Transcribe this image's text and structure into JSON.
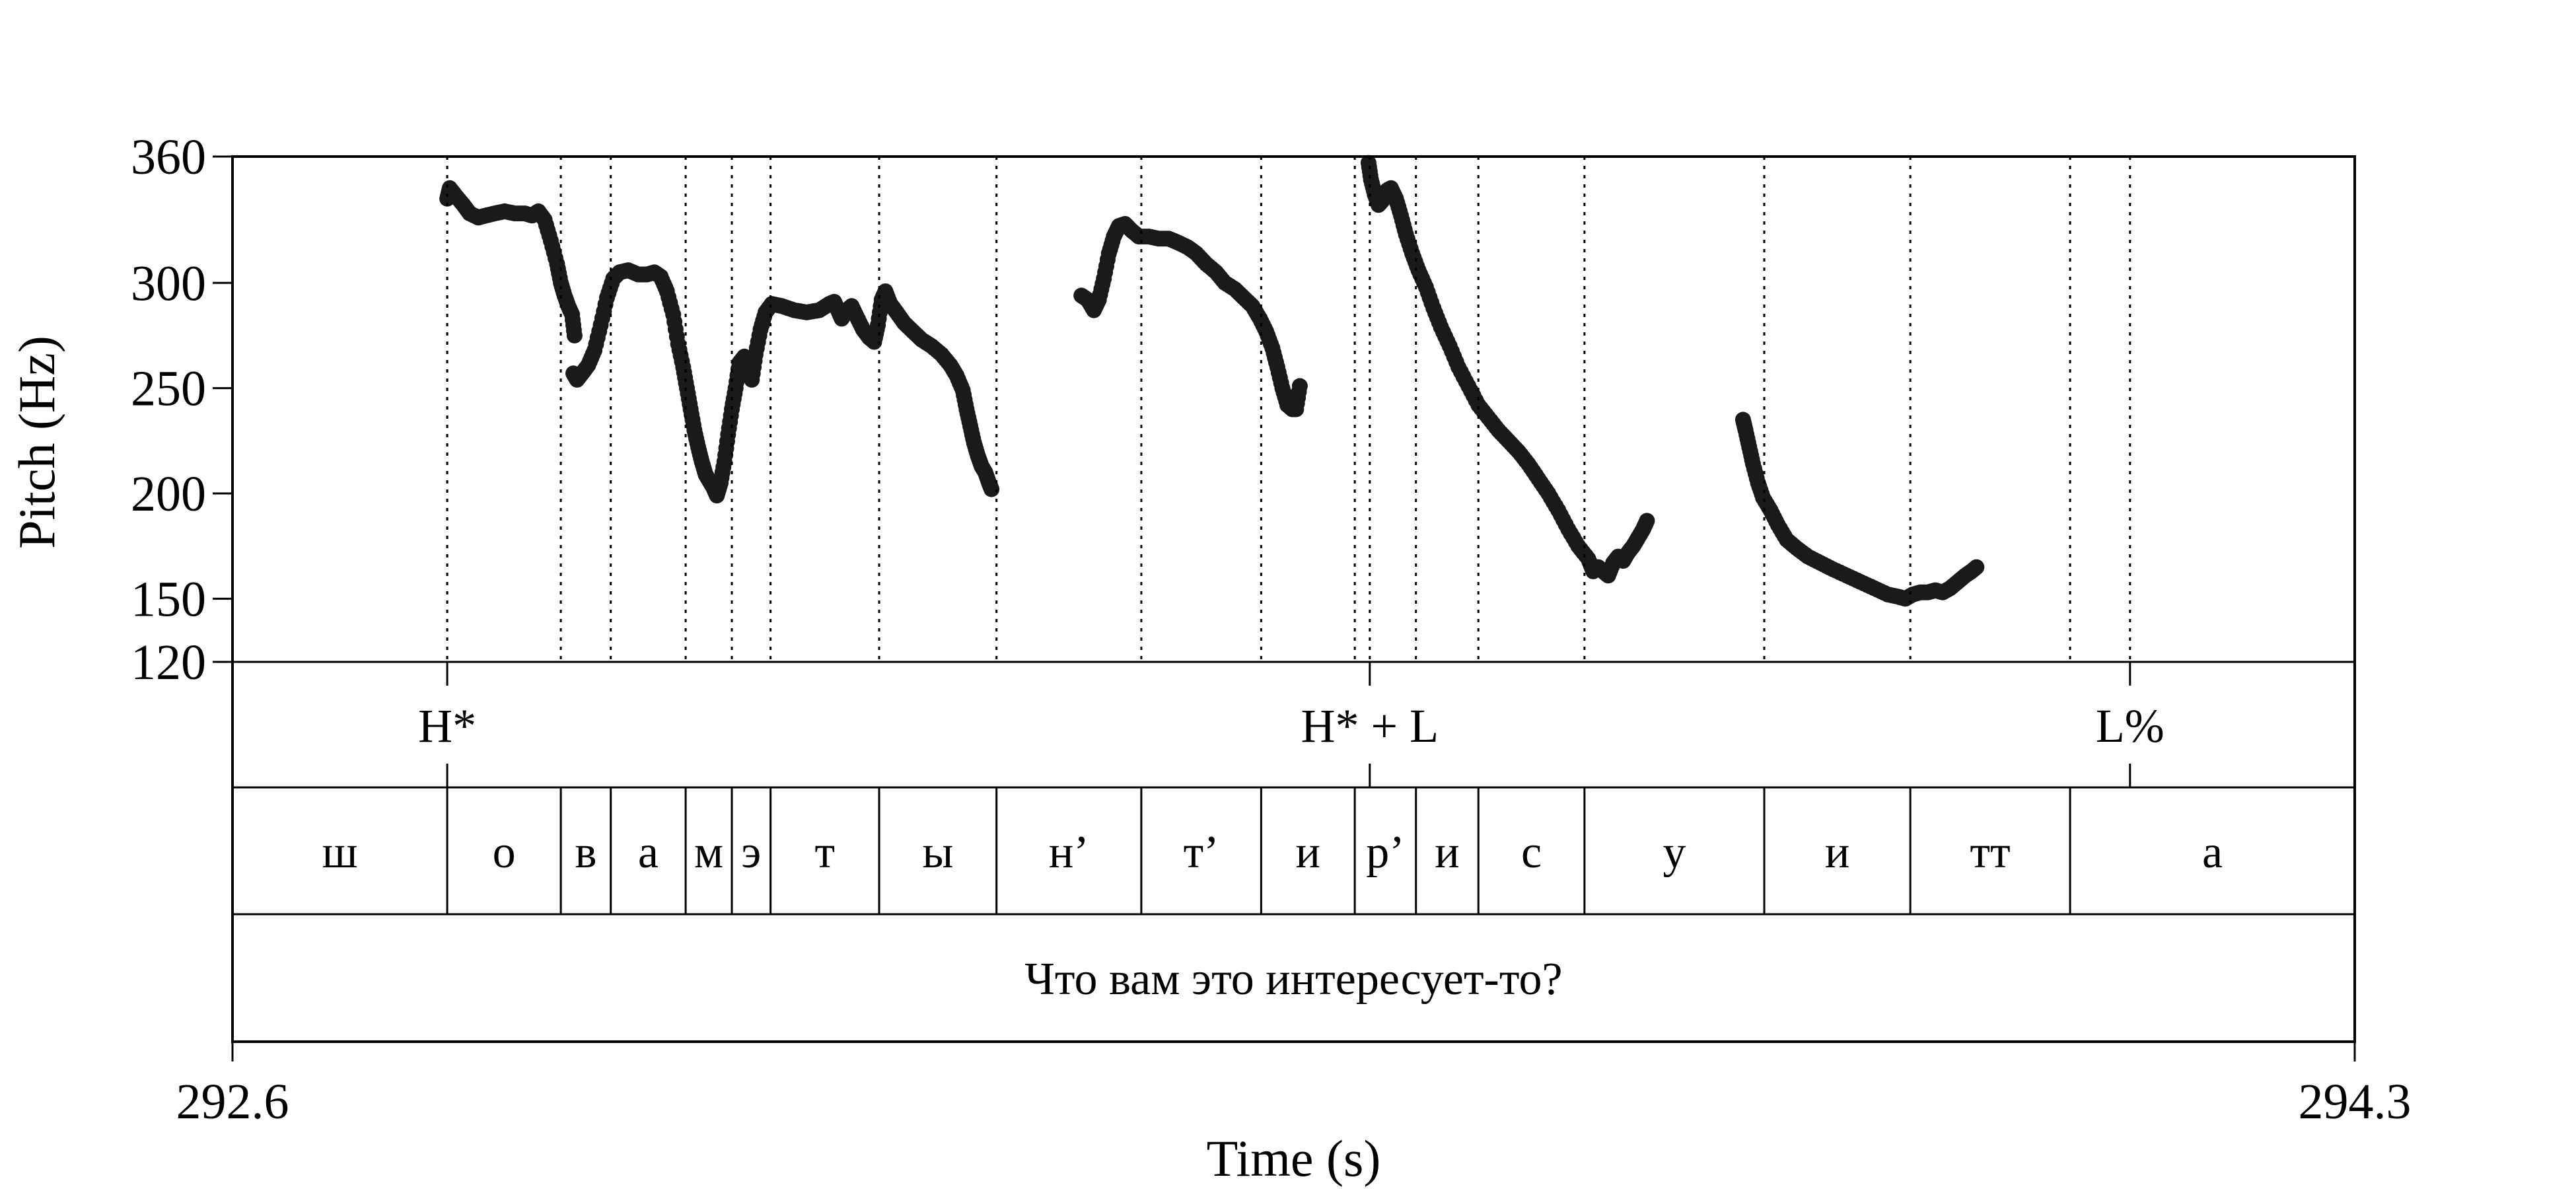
{
  "chart_data": {
    "type": "scatter",
    "xlabel": "Time (s)",
    "ylabel": "Pitch (Hz)",
    "xlim": [
      292.6,
      294.3
    ],
    "ylim": [
      120,
      360
    ],
    "x_ticks": [
      "292.6",
      "294.3"
    ],
    "y_ticks": [
      {
        "value": 360,
        "label": "360"
      },
      {
        "value": 300,
        "label": "300"
      },
      {
        "value": 250,
        "label": "250"
      },
      {
        "value": 200,
        "label": "200"
      },
      {
        "value": 150,
        "label": "150"
      },
      {
        "value": 120,
        "label": "120"
      }
    ],
    "pitch_segments": [
      {
        "points": [
          [
            292.772,
            340
          ],
          [
            292.774,
            345
          ],
          [
            292.778,
            342
          ],
          [
            292.785,
            337
          ],
          [
            292.79,
            333
          ],
          [
            292.797,
            331
          ],
          [
            292.803,
            332
          ],
          [
            292.81,
            333
          ],
          [
            292.818,
            334
          ],
          [
            292.826,
            333
          ],
          [
            292.834,
            333
          ],
          [
            292.84,
            332
          ],
          [
            292.845,
            334
          ],
          [
            292.85,
            330
          ],
          [
            292.855,
            320
          ],
          [
            292.86,
            309
          ],
          [
            292.863,
            300
          ],
          [
            292.866,
            294
          ],
          [
            292.869,
            289
          ],
          [
            292.872,
            285
          ],
          [
            292.874,
            275
          ]
        ]
      },
      {
        "points": [
          [
            292.873,
            257
          ],
          [
            292.876,
            254
          ],
          [
            292.88,
            257
          ],
          [
            292.885,
            261
          ],
          [
            292.89,
            268
          ],
          [
            292.895,
            280
          ],
          [
            292.9,
            293
          ],
          [
            292.905,
            302
          ],
          [
            292.91,
            305
          ],
          [
            292.917,
            306
          ],
          [
            292.925,
            304
          ],
          [
            292.932,
            304
          ],
          [
            292.938,
            305
          ],
          [
            292.943,
            303
          ],
          [
            292.948,
            296
          ],
          [
            292.953,
            285
          ],
          [
            292.957,
            271
          ],
          [
            292.961,
            260
          ],
          [
            292.964,
            250
          ],
          [
            292.967,
            240
          ],
          [
            292.97,
            230
          ],
          [
            292.973,
            222
          ],
          [
            292.976,
            215
          ],
          [
            292.979,
            209
          ],
          [
            292.982,
            206
          ],
          [
            292.985,
            203
          ],
          [
            292.988,
            199
          ],
          [
            292.991,
            205
          ],
          [
            292.994,
            215
          ],
          [
            292.997,
            228
          ],
          [
            293.0,
            240
          ],
          [
            293.003,
            250
          ],
          [
            293.006,
            262
          ],
          [
            293.01,
            265
          ],
          [
            293.014,
            262
          ],
          [
            293.016,
            254
          ],
          [
            293.019,
            266
          ],
          [
            293.023,
            278
          ],
          [
            293.027,
            286
          ],
          [
            293.032,
            290
          ],
          [
            293.04,
            289
          ],
          [
            293.05,
            287
          ],
          [
            293.06,
            286
          ],
          [
            293.07,
            287
          ],
          [
            293.078,
            290
          ],
          [
            293.082,
            291
          ],
          [
            293.085,
            287
          ],
          [
            293.088,
            283
          ],
          [
            293.092,
            287
          ],
          [
            293.096,
            289
          ],
          [
            293.1,
            284
          ],
          [
            293.105,
            278
          ],
          [
            293.11,
            274
          ],
          [
            293.114,
            272
          ],
          [
            293.117,
            280
          ],
          [
            293.12,
            292
          ],
          [
            293.123,
            296
          ],
          [
            293.127,
            290
          ],
          [
            293.132,
            286
          ],
          [
            293.138,
            281
          ],
          [
            293.145,
            277
          ],
          [
            293.152,
            273
          ],
          [
            293.16,
            270
          ],
          [
            293.168,
            266
          ],
          [
            293.175,
            261
          ],
          [
            293.18,
            256
          ],
          [
            293.185,
            249
          ],
          [
            293.188,
            240
          ],
          [
            293.191,
            232
          ],
          [
            293.194,
            224
          ],
          [
            293.197,
            218
          ],
          [
            293.2,
            213
          ],
          [
            293.203,
            210
          ],
          [
            293.206,
            205
          ],
          [
            293.208,
            202
          ]
        ]
      },
      {
        "points": [
          [
            293.28,
            294
          ],
          [
            293.285,
            292
          ],
          [
            293.29,
            287
          ],
          [
            293.294,
            292
          ],
          [
            293.298,
            302
          ],
          [
            293.302,
            314
          ],
          [
            293.306,
            322
          ],
          [
            293.31,
            327
          ],
          [
            293.315,
            328
          ],
          [
            293.32,
            325
          ],
          [
            293.326,
            322
          ],
          [
            293.334,
            322
          ],
          [
            293.342,
            321
          ],
          [
            293.35,
            321
          ],
          [
            293.358,
            319
          ],
          [
            293.365,
            317
          ],
          [
            293.372,
            314
          ],
          [
            293.38,
            309
          ],
          [
            293.388,
            305
          ],
          [
            293.395,
            300
          ],
          [
            293.403,
            297
          ],
          [
            293.41,
            293
          ],
          [
            293.417,
            289
          ],
          [
            293.423,
            283
          ],
          [
            293.428,
            277
          ],
          [
            293.433,
            269
          ],
          [
            293.437,
            260
          ],
          [
            293.441,
            250
          ],
          [
            293.445,
            242
          ],
          [
            293.449,
            240
          ],
          [
            293.452,
            240
          ],
          [
            293.455,
            251
          ]
        ]
      },
      {
        "points": [
          [
            293.51,
            357
          ],
          [
            293.512,
            349
          ],
          [
            293.515,
            342
          ],
          [
            293.518,
            337
          ],
          [
            293.521,
            339
          ],
          [
            293.525,
            344
          ],
          [
            293.528,
            345
          ],
          [
            293.532,
            340
          ],
          [
            293.536,
            332
          ],
          [
            293.54,
            323
          ],
          [
            293.545,
            314
          ],
          [
            293.55,
            306
          ],
          [
            293.556,
            298
          ],
          [
            293.562,
            288
          ],
          [
            293.568,
            279
          ],
          [
            293.575,
            270
          ],
          [
            293.582,
            260
          ],
          [
            293.59,
            251
          ],
          [
            293.598,
            242
          ],
          [
            293.606,
            236
          ],
          [
            293.614,
            230
          ],
          [
            293.622,
            225
          ],
          [
            293.63,
            220
          ],
          [
            293.638,
            214
          ],
          [
            293.646,
            207
          ],
          [
            293.654,
            200
          ],
          [
            293.662,
            192
          ],
          [
            293.67,
            183
          ],
          [
            293.678,
            175
          ],
          [
            293.686,
            169
          ],
          [
            293.69,
            163
          ],
          [
            293.694,
            165
          ],
          [
            293.698,
            163
          ],
          [
            293.702,
            161
          ],
          [
            293.706,
            167
          ],
          [
            293.71,
            170
          ],
          [
            293.714,
            168
          ],
          [
            293.718,
            172
          ],
          [
            293.722,
            175
          ],
          [
            293.726,
            179
          ],
          [
            293.73,
            183
          ],
          [
            293.733,
            187
          ]
        ]
      },
      {
        "points": [
          [
            293.81,
            235
          ],
          [
            293.812,
            230
          ],
          [
            293.815,
            222
          ],
          [
            293.818,
            214
          ],
          [
            293.822,
            205
          ],
          [
            293.826,
            198
          ],
          [
            293.832,
            192
          ],
          [
            293.838,
            185
          ],
          [
            293.845,
            178
          ],
          [
            293.853,
            174
          ],
          [
            293.862,
            170
          ],
          [
            293.872,
            167
          ],
          [
            293.882,
            164
          ],
          [
            293.893,
            161
          ],
          [
            293.904,
            158
          ],
          [
            293.915,
            155
          ],
          [
            293.926,
            152
          ],
          [
            293.934,
            151
          ],
          [
            293.94,
            150
          ],
          [
            293.946,
            152
          ],
          [
            293.952,
            153
          ],
          [
            293.958,
            153
          ],
          [
            293.964,
            154
          ],
          [
            293.97,
            153
          ],
          [
            293.976,
            155
          ],
          [
            293.982,
            158
          ],
          [
            293.988,
            161
          ],
          [
            293.993,
            163
          ],
          [
            293.997,
            165
          ]
        ]
      }
    ],
    "tiers": [
      {
        "name": "tones",
        "marks": [
          {
            "t": 292.772,
            "label": "H*"
          },
          {
            "t": 293.511,
            "label": "H* + L"
          },
          {
            "t": 294.12,
            "label": "L%"
          }
        ]
      },
      {
        "name": "segments",
        "intervals": [
          {
            "start": 292.6,
            "end": 292.772,
            "label": "ш"
          },
          {
            "start": 292.772,
            "end": 292.863,
            "label": "о"
          },
          {
            "start": 292.863,
            "end": 292.903,
            "label": "в"
          },
          {
            "start": 292.903,
            "end": 292.963,
            "label": "а"
          },
          {
            "start": 292.963,
            "end": 293.0,
            "label": "м"
          },
          {
            "start": 293.0,
            "end": 293.031,
            "label": "э"
          },
          {
            "start": 293.031,
            "end": 293.118,
            "label": "т"
          },
          {
            "start": 293.118,
            "end": 293.212,
            "label": "ы"
          },
          {
            "start": 293.212,
            "end": 293.328,
            "label": "н’"
          },
          {
            "start": 293.328,
            "end": 293.424,
            "label": "т’"
          },
          {
            "start": 293.424,
            "end": 293.499,
            "label": "и"
          },
          {
            "start": 293.499,
            "end": 293.548,
            "label": "р’"
          },
          {
            "start": 293.548,
            "end": 293.598,
            "label": "и"
          },
          {
            "start": 293.598,
            "end": 293.683,
            "label": "с"
          },
          {
            "start": 293.683,
            "end": 293.827,
            "label": "у"
          },
          {
            "start": 293.827,
            "end": 293.944,
            "label": "и"
          },
          {
            "start": 293.944,
            "end": 294.072,
            "label": "тт"
          },
          {
            "start": 294.072,
            "end": 294.3,
            "label": "а"
          }
        ]
      },
      {
        "name": "text",
        "intervals": [
          {
            "start": 292.6,
            "end": 294.3,
            "label": "Что вам это интересует-то?"
          }
        ]
      }
    ],
    "grid": false
  }
}
